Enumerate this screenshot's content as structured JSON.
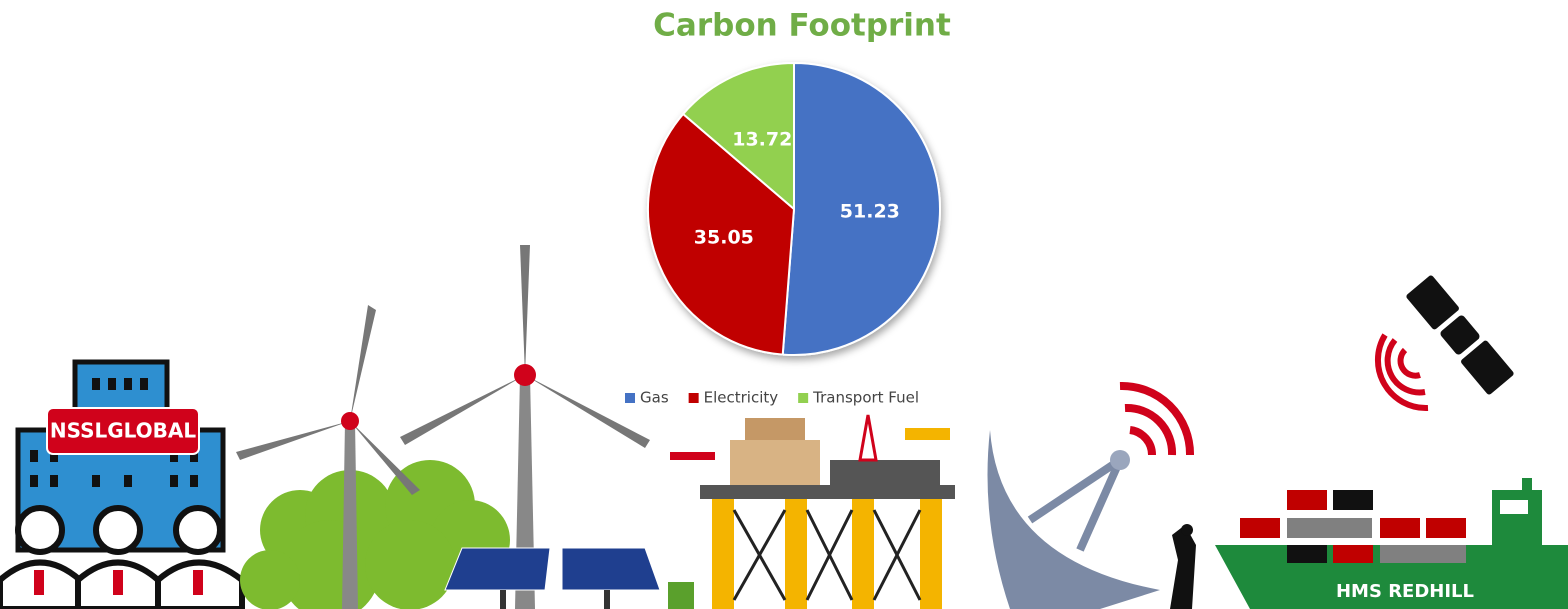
{
  "chart_data": {
    "type": "pie",
    "title": "Carbon Footprint",
    "categories": [
      "Gas",
      "Electricity",
      "Transport Fuel"
    ],
    "values": [
      51.23,
      35.05,
      13.72
    ],
    "colors": [
      "#4472c4",
      "#c00000",
      "#92d050"
    ],
    "legend": "bottom"
  },
  "illustration": {
    "building_sign": "NSSLGLOBAL",
    "ship_name": "HMS REDHILL"
  }
}
